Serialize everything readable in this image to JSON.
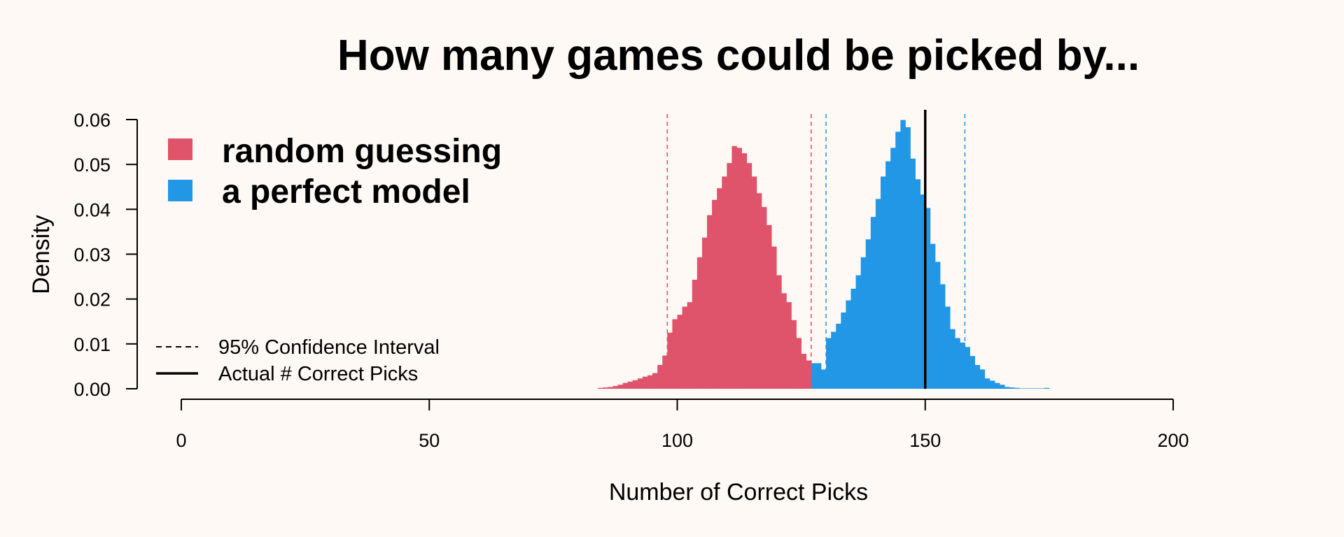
{
  "chart_data": {
    "type": "histogram",
    "title": "How many games could be picked by...",
    "xlabel": "Number of Correct Picks",
    "ylabel": "Density",
    "xlim": [
      0,
      200
    ],
    "ylim": [
      0,
      0.06
    ],
    "xticks": [
      0,
      50,
      100,
      150,
      200
    ],
    "yticks": [
      "0.00",
      "0.01",
      "0.02",
      "0.03",
      "0.04",
      "0.05",
      "0.06"
    ],
    "grid": false,
    "legend_position": "top-left",
    "bin_width": 1,
    "series": [
      {
        "name": "random guessing",
        "color": "#df536b",
        "bin_starts": [
          84,
          85,
          86,
          87,
          88,
          89,
          90,
          91,
          92,
          93,
          94,
          95,
          96,
          97,
          98,
          99,
          100,
          101,
          102,
          103,
          104,
          105,
          106,
          107,
          108,
          109,
          110,
          111,
          112,
          113,
          114,
          115,
          116,
          117,
          118,
          119,
          120,
          121,
          122,
          123,
          124,
          125,
          126,
          127,
          128,
          129,
          130,
          131,
          132,
          133,
          134,
          135,
          136,
          137,
          138,
          139,
          140
        ],
        "density": [
          0.0002,
          0.0003,
          0.0004,
          0.0006,
          0.0009,
          0.0013,
          0.0016,
          0.0019,
          0.0023,
          0.0027,
          0.003,
          0.0035,
          0.0053,
          0.0074,
          0.0125,
          0.0155,
          0.0165,
          0.0183,
          0.0193,
          0.0243,
          0.0293,
          0.0337,
          0.0387,
          0.0421,
          0.0447,
          0.0473,
          0.0503,
          0.0541,
          0.0537,
          0.0525,
          0.0503,
          0.0473,
          0.0436,
          0.0405,
          0.0365,
          0.0317,
          0.0253,
          0.0213,
          0.0193,
          0.0153,
          0.0113,
          0.0078,
          0.0063,
          0.0033,
          0.0026,
          0.0023,
          0.0019,
          0.0016,
          0.0013,
          0.0011,
          0.0008,
          0.0006,
          0.0005,
          0.0004,
          0.0003,
          0.0002,
          0.0001
        ]
      },
      {
        "name": "a perfect model",
        "color": "#2297e6",
        "bin_starts": [
          127,
          128,
          129,
          130,
          131,
          132,
          133,
          134,
          135,
          136,
          137,
          138,
          139,
          140,
          141,
          142,
          143,
          144,
          145,
          146,
          147,
          148,
          149,
          150,
          151,
          152,
          153,
          154,
          155,
          156,
          157,
          158,
          159,
          160,
          161,
          162,
          163,
          164,
          165,
          166,
          167,
          168,
          169,
          170,
          171,
          172,
          173,
          174
        ],
        "density": [
          0.0057,
          0.0057,
          0.0043,
          0.0113,
          0.0127,
          0.0145,
          0.017,
          0.0197,
          0.0223,
          0.0253,
          0.0293,
          0.0333,
          0.0383,
          0.0423,
          0.0473,
          0.0507,
          0.0537,
          0.0573,
          0.0599,
          0.0583,
          0.0513,
          0.0467,
          0.0433,
          0.0403,
          0.0323,
          0.0283,
          0.0233,
          0.0183,
          0.0133,
          0.0113,
          0.0103,
          0.0093,
          0.0073,
          0.0053,
          0.0043,
          0.0023,
          0.0018,
          0.0013,
          0.0009,
          0.0004,
          0.0003,
          0.0002,
          0.0001,
          0.0001,
          0.0001,
          0.0001,
          0.0001,
          0.0002
        ]
      }
    ],
    "reference_lines": [
      {
        "kind": "95% Confidence Interval",
        "series": "random guessing",
        "style": "dashed",
        "color": "#df536b",
        "values": [
          98,
          127
        ]
      },
      {
        "kind": "95% Confidence Interval",
        "series": "a perfect model",
        "style": "dashed",
        "color": "#2297e6",
        "values": [
          130,
          158
        ]
      },
      {
        "kind": "Actual # Correct Picks",
        "style": "solid",
        "color": "#000000",
        "values": [
          150
        ]
      }
    ],
    "line_legend": [
      {
        "label": "95% Confidence Interval",
        "style": "dashed"
      },
      {
        "label": "Actual # Correct Picks",
        "style": "solid"
      }
    ]
  }
}
